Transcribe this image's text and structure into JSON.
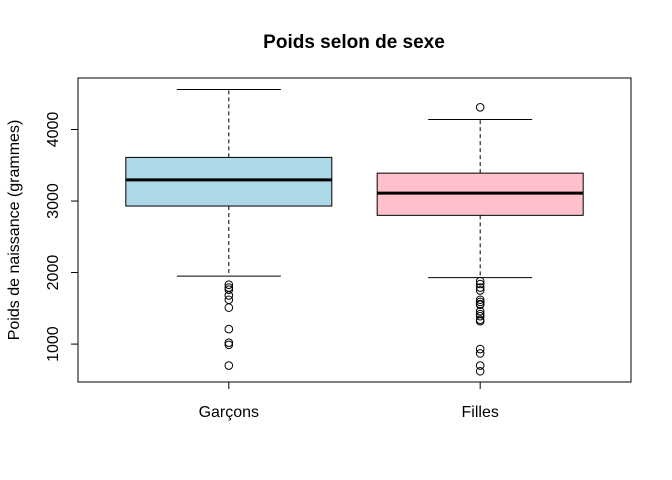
{
  "chart_data": {
    "type": "boxplot",
    "title": "Poids selon de sexe",
    "xlabel": "",
    "ylabel": "Poids de naissance (grammes)",
    "ylim": [
      470,
      4720
    ],
    "yticks": [
      1000,
      2000,
      3000,
      4000
    ],
    "grid": false,
    "categories": [
      "Garçons",
      "Filles"
    ],
    "boxes": [
      {
        "category": "Garçons",
        "color": "#ADD8E6",
        "whisker_low": 1950,
        "q1": 2930,
        "median": 3295,
        "q3": 3610,
        "whisker_high": 4560,
        "outliers": [
          1830,
          1790,
          1760,
          1680,
          1620,
          1510,
          1210,
          1020,
          990,
          700
        ]
      },
      {
        "category": "Filles",
        "color": "#FFC0CB",
        "whisker_low": 1930,
        "q1": 2800,
        "median": 3110,
        "q3": 3390,
        "whisker_high": 4140,
        "outliers": [
          4310,
          1880,
          1840,
          1790,
          1750,
          1620,
          1590,
          1560,
          1550,
          1460,
          1420,
          1390,
          1340,
          1320,
          930,
          870,
          700,
          620
        ]
      }
    ]
  }
}
